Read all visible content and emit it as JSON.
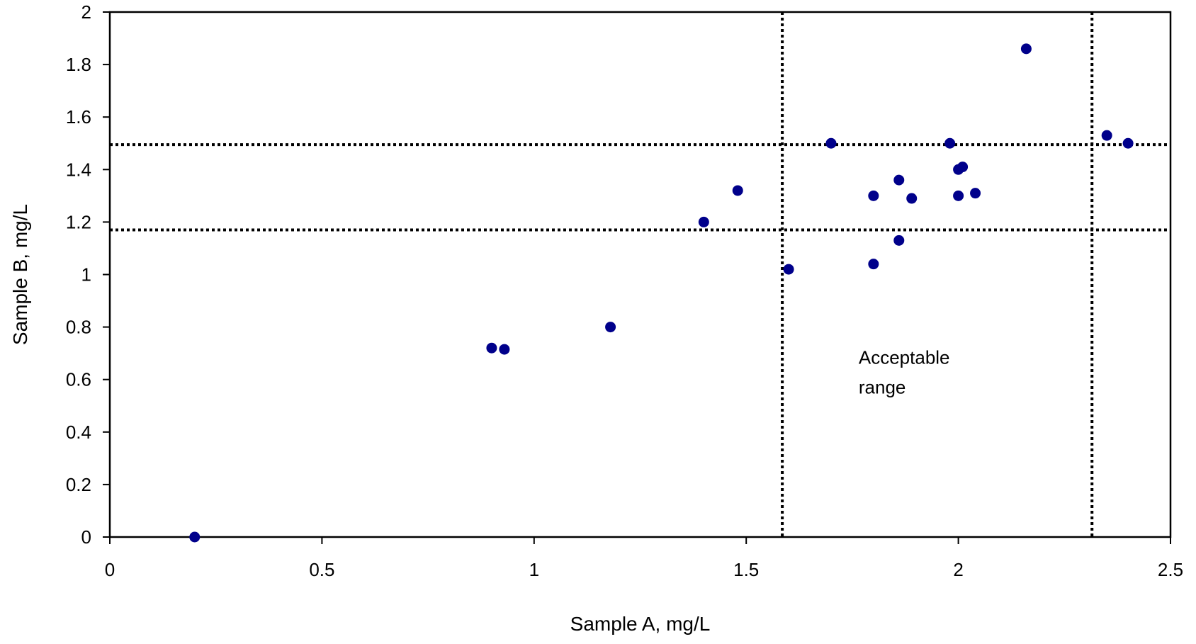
{
  "chart_data": {
    "type": "scatter",
    "xlabel": "Sample A, mg/L",
    "ylabel": "Sample B, mg/L",
    "xlim": [
      0,
      2.5
    ],
    "ylim": [
      0,
      2
    ],
    "x_ticks": [
      0,
      0.5,
      1,
      1.5,
      2,
      2.5
    ],
    "x_tick_labels": [
      "0",
      "0.5",
      "1",
      "1.5",
      "2",
      "2.5"
    ],
    "y_ticks": [
      0,
      0.2,
      0.4,
      0.6,
      0.8,
      1,
      1.2,
      1.4,
      1.6,
      1.8,
      2
    ],
    "y_tick_labels": [
      "0",
      "0.2",
      "0.4",
      "0.6",
      "0.8",
      "1",
      "1.2",
      "1.4",
      "1.6",
      "1.8",
      "2"
    ],
    "grid": false,
    "legend": "none",
    "point_color": "#00008B",
    "points": [
      {
        "x": 0.2,
        "y": 0.0
      },
      {
        "x": 0.9,
        "y": 0.72
      },
      {
        "x": 0.93,
        "y": 0.715
      },
      {
        "x": 1.18,
        "y": 0.8
      },
      {
        "x": 1.4,
        "y": 1.2
      },
      {
        "x": 1.48,
        "y": 1.32
      },
      {
        "x": 1.6,
        "y": 1.02
      },
      {
        "x": 1.7,
        "y": 1.5
      },
      {
        "x": 1.8,
        "y": 1.3
      },
      {
        "x": 1.8,
        "y": 1.04
      },
      {
        "x": 1.86,
        "y": 1.36
      },
      {
        "x": 1.86,
        "y": 1.13
      },
      {
        "x": 1.89,
        "y": 1.29
      },
      {
        "x": 1.98,
        "y": 1.5
      },
      {
        "x": 2.0,
        "y": 1.4
      },
      {
        "x": 2.01,
        "y": 1.41
      },
      {
        "x": 2.0,
        "y": 1.3
      },
      {
        "x": 2.04,
        "y": 1.31
      },
      {
        "x": 2.16,
        "y": 1.86
      },
      {
        "x": 2.35,
        "y": 1.53
      },
      {
        "x": 2.4,
        "y": 1.5
      }
    ],
    "acceptable_range": {
      "x_lines": [
        1.585,
        2.315
      ],
      "y_lines": [
        1.17,
        1.495
      ]
    },
    "annotation": {
      "lines": [
        "Acceptable",
        "range"
      ],
      "x": 1.765,
      "y": 0.66
    }
  }
}
